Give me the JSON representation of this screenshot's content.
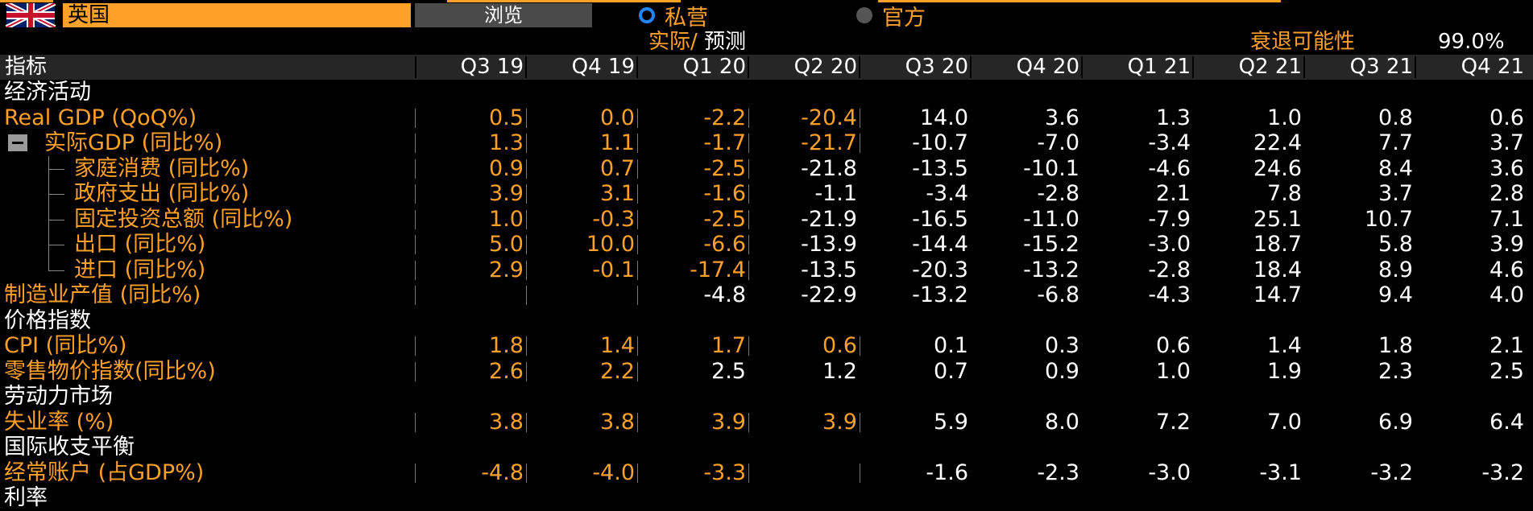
{
  "header": {
    "country": "英国",
    "browse_label": "浏览",
    "radio_private": "私营",
    "radio_official": "官方",
    "actual_label": "实际",
    "slash": "/",
    "forecast_label": "预测",
    "recession_label": "衰退可能性",
    "recession_value": "99.0%"
  },
  "flag_icon": "uk-flag-icon",
  "colors": {
    "accent": "#ffa028",
    "selected": "#1f86ff",
    "header_bg": "#262626"
  },
  "table": {
    "label_header": "指标",
    "columns": [
      "Q3 19",
      "Q4 19",
      "Q1 20",
      "Q2 20",
      "Q3 20",
      "Q4 20",
      "Q1 21",
      "Q2 21",
      "Q3 21",
      "Q4 21"
    ],
    "rows": [
      {
        "type": "section",
        "label": "经济活动"
      },
      {
        "type": "data",
        "label": "Real GDP (QoQ%)",
        "values": [
          "0.5",
          "0.0",
          "-2.2",
          "-20.4",
          "14.0",
          "3.6",
          "1.3",
          "1.0",
          "0.8",
          "0.6"
        ],
        "orange_count": 4
      },
      {
        "type": "data",
        "label": "实际GDP (同比%)",
        "collapse": true,
        "values": [
          "1.3",
          "1.1",
          "-1.7",
          "-21.7",
          "-10.7",
          "-7.0",
          "-3.4",
          "22.4",
          "7.7",
          "3.7"
        ],
        "orange_count": 4
      },
      {
        "type": "data",
        "label": "家庭消费 (同比%)",
        "child": true,
        "values": [
          "0.9",
          "0.7",
          "-2.5",
          "-21.8",
          "-13.5",
          "-10.1",
          "-4.6",
          "24.6",
          "8.4",
          "3.6"
        ],
        "orange_count": 3
      },
      {
        "type": "data",
        "label": "政府支出 (同比%)",
        "child": true,
        "values": [
          "3.9",
          "3.1",
          "-1.6",
          "-1.1",
          "-3.4",
          "-2.8",
          "2.1",
          "7.8",
          "3.7",
          "2.8"
        ],
        "orange_count": 3
      },
      {
        "type": "data",
        "label": "固定投资总额 (同比%)",
        "child": true,
        "values": [
          "1.0",
          "-0.3",
          "-2.5",
          "-21.9",
          "-16.5",
          "-11.0",
          "-7.9",
          "25.1",
          "10.7",
          "7.1"
        ],
        "orange_count": 3
      },
      {
        "type": "data",
        "label": "出口 (同比%)",
        "child": true,
        "values": [
          "5.0",
          "10.0",
          "-6.6",
          "-13.9",
          "-14.4",
          "-15.2",
          "-3.0",
          "18.7",
          "5.8",
          "3.9"
        ],
        "orange_count": 3
      },
      {
        "type": "data",
        "label": "进口 (同比%)",
        "child": true,
        "last_child": true,
        "values": [
          "2.9",
          "-0.1",
          "-17.4",
          "-13.5",
          "-20.3",
          "-13.2",
          "-2.8",
          "18.4",
          "8.9",
          "4.6"
        ],
        "orange_count": 3
      },
      {
        "type": "data",
        "label": "制造业产值 (同比%)",
        "values": [
          "",
          "",
          "-4.8",
          "-22.9",
          "-13.2",
          "-6.8",
          "-4.3",
          "14.7",
          "9.4",
          "4.0"
        ],
        "orange_count": 2
      },
      {
        "type": "section",
        "label": "价格指数"
      },
      {
        "type": "data",
        "label": "CPI (同比%)",
        "values": [
          "1.8",
          "1.4",
          "1.7",
          "0.6",
          "0.1",
          "0.3",
          "0.6",
          "1.4",
          "1.8",
          "2.1"
        ],
        "orange_count": 4
      },
      {
        "type": "data",
        "label": "零售物价指数(同比%)",
        "values": [
          "2.6",
          "2.2",
          "2.5",
          "1.2",
          "0.7",
          "0.9",
          "1.0",
          "1.9",
          "2.3",
          "2.5"
        ],
        "orange_count": 2
      },
      {
        "type": "section",
        "label": "劳动力市场"
      },
      {
        "type": "data",
        "label": "失业率 (%)",
        "values": [
          "3.8",
          "3.8",
          "3.9",
          "3.9",
          "5.9",
          "8.0",
          "7.2",
          "7.0",
          "6.9",
          "6.4"
        ],
        "orange_count": 4
      },
      {
        "type": "section",
        "label": "国际收支平衡"
      },
      {
        "type": "data",
        "label": "经常账户 (占GDP%)",
        "values": [
          "-4.8",
          "-4.0",
          "-3.3",
          "",
          "-1.6",
          "-2.3",
          "-3.0",
          "-3.1",
          "-3.2",
          "-3.2"
        ],
        "orange_count": 4
      },
      {
        "type": "section",
        "label": "利率"
      }
    ]
  }
}
